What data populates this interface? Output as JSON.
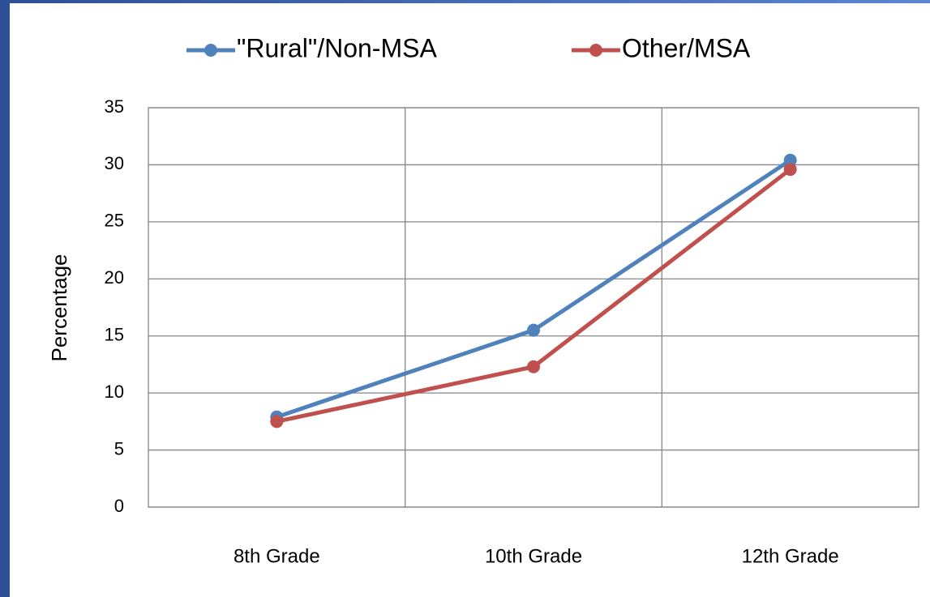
{
  "chart_data": {
    "type": "line",
    "categories": [
      "8th Grade",
      "10th Grade",
      "12th Grade"
    ],
    "series": [
      {
        "name": "\"Rural\"/Non-MSA",
        "color": "#4f81bd",
        "values": [
          7.9,
          15.5,
          30.4
        ]
      },
      {
        "name": "Other/MSA",
        "color": "#c0504d",
        "values": [
          7.5,
          12.3,
          29.6
        ]
      }
    ],
    "ylabel": "Percentage",
    "ylim": [
      0,
      35
    ],
    "yticks": [
      0,
      5,
      10,
      15,
      20,
      25,
      30,
      35
    ],
    "grid": true,
    "legend": "top"
  }
}
